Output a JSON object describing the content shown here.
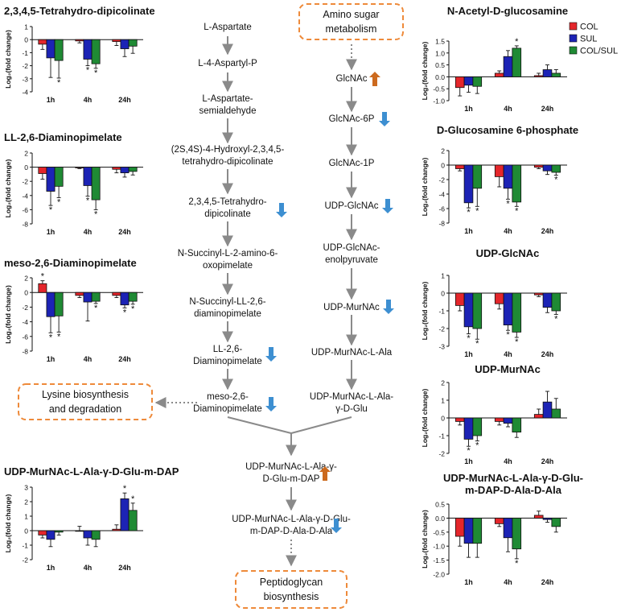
{
  "colors": {
    "col": "#e4262b",
    "sul": "#1c23b5",
    "colsul": "#1f8a34",
    "arrow": "#8a8a8a",
    "up": "#cc6a1e",
    "down": "#3d8fd1",
    "box": "#ee8a3a"
  },
  "legend": [
    "COL",
    "SUL",
    "COL/SUL"
  ],
  "ylabel": "Log₂(fold change)",
  "pathway_left": [
    {
      "lines": [
        "L-Aspartate"
      ],
      "change": "none"
    },
    {
      "lines": [
        "L-4-Aspartyl-P"
      ],
      "change": "none"
    },
    {
      "lines": [
        "L-Aspartate-",
        "semialdehyde"
      ],
      "change": "none"
    },
    {
      "lines": [
        "(2S,4S)-4-Hydroxyl-2,3,4,5-",
        "tetrahydro-dipicolinate"
      ],
      "change": "none"
    },
    {
      "lines": [
        "2,3,4,5-Tetrahydro-",
        "dipicolinate"
      ],
      "change": "down"
    },
    {
      "lines": [
        "N-Succinyl-L-2-amino-6-",
        "oxopimelate"
      ],
      "change": "none"
    },
    {
      "lines": [
        "N-Succinyl-LL-2,6-",
        "diaminopimelate"
      ],
      "change": "none"
    },
    {
      "lines": [
        "LL-2,6-",
        "Diaminopimelate"
      ],
      "change": "down"
    },
    {
      "lines": [
        "meso-2,6-",
        "Diaminopimelate"
      ],
      "change": "down"
    }
  ],
  "pathway_right": [
    {
      "lines": [
        "GlcNAc"
      ],
      "change": "up"
    },
    {
      "lines": [
        "GlcNAc-6P"
      ],
      "change": "down"
    },
    {
      "lines": [
        "GlcNAc-1P"
      ],
      "change": "none"
    },
    {
      "lines": [
        "UDP-GlcNAc"
      ],
      "change": "down"
    },
    {
      "lines": [
        "UDP-GlcNAc-",
        "enolpyruvate"
      ],
      "change": "none"
    },
    {
      "lines": [
        "UDP-MurNAc"
      ],
      "change": "down"
    },
    {
      "lines": [
        "UDP-MurNAc-L-Ala"
      ],
      "change": "none"
    },
    {
      "lines": [
        "UDP-MurNAc-L-Ala-",
        "γ-D-Glu"
      ],
      "change": "none"
    }
  ],
  "pathway_bottom": [
    {
      "lines": [
        "UDP-MurNAc-L-Ala-γ-",
        "D-Glu-m-DAP"
      ],
      "change": "up"
    },
    {
      "lines": [
        "UDP-MurNAc-L-Ala-γ-D-Glu-",
        "m-DAP-D-Ala-D-Ala"
      ],
      "change": "down"
    }
  ],
  "boxes": {
    "amino_sugar": [
      "Amino sugar",
      "metabolism"
    ],
    "lysine": [
      "Lysine biosynthesis",
      "and degradation"
    ],
    "peptidoglycan": [
      "Peptidoglycan",
      "biosynthesis"
    ]
  },
  "chart_data": [
    {
      "type": "bar",
      "title": "2,3,4,5-Tetrahydro-dipicolinate",
      "categories": [
        "1h",
        "4h",
        "24h"
      ],
      "ylim": [
        -4,
        1
      ],
      "yticks": [
        1,
        0,
        -1,
        -2,
        -3,
        -4
      ],
      "ylabel": "Log₂(fold change)",
      "series": [
        {
          "name": "COL",
          "values": [
            -0.35,
            -0.1,
            -0.15
          ],
          "err": [
            0.4,
            0.15,
            0.3
          ]
        },
        {
          "name": "SUL",
          "values": [
            -1.4,
            -1.5,
            -0.7
          ],
          "err": [
            1.5,
            0.5,
            0.6
          ]
        },
        {
          "name": "COL/SUL",
          "values": [
            -1.6,
            -1.85,
            -0.5
          ],
          "err": [
            1.35,
            0.35,
            0.55
          ]
        }
      ],
      "sig": [
        [
          false,
          false,
          false
        ],
        [
          false,
          true,
          false
        ],
        [
          true,
          true,
          false
        ]
      ]
    },
    {
      "type": "bar",
      "title": "LL-2,6-Diaminopimelate",
      "categories": [
        "1h",
        "4h",
        "24h"
      ],
      "ylim": [
        -8,
        2
      ],
      "yticks": [
        2,
        0,
        -2,
        -4,
        -6,
        -8
      ],
      "ylabel": "Log₂(fold change)",
      "series": [
        {
          "name": "COL",
          "values": [
            -0.9,
            -0.1,
            -0.3
          ],
          "err": [
            0.8,
            0.1,
            0.5
          ]
        },
        {
          "name": "SUL",
          "values": [
            -3.4,
            -2.6,
            -0.8
          ],
          "err": [
            2.0,
            1.5,
            0.6
          ]
        },
        {
          "name": "COL/SUL",
          "values": [
            -2.7,
            -4.6,
            -0.6
          ],
          "err": [
            1.6,
            1.4,
            0.5
          ]
        }
      ],
      "sig": [
        [
          false,
          false,
          false
        ],
        [
          true,
          true,
          false
        ],
        [
          true,
          true,
          false
        ]
      ]
    },
    {
      "type": "bar",
      "title": "meso-2,6-Diaminopimelate",
      "categories": [
        "1h",
        "4h",
        "24h"
      ],
      "ylim": [
        -8,
        2
      ],
      "yticks": [
        2,
        0,
        -2,
        -4,
        -6,
        -8
      ],
      "ylabel": "Log₂(fold change)",
      "series": [
        {
          "name": "COL",
          "values": [
            1.2,
            -0.4,
            -0.4
          ],
          "err": [
            0.4,
            0.3,
            0.3
          ]
        },
        {
          "name": "SUL",
          "values": [
            -3.3,
            -1.3,
            -1.7
          ],
          "err": [
            2.2,
            2.6,
            0.4
          ]
        },
        {
          "name": "COL/SUL",
          "values": [
            -3.2,
            -1.2,
            -1.2
          ],
          "err": [
            2.2,
            0.3,
            0.4
          ]
        }
      ],
      "sig": [
        [
          true,
          false,
          false
        ],
        [
          true,
          false,
          true
        ],
        [
          true,
          true,
          true
        ]
      ]
    },
    {
      "type": "bar",
      "title": "UDP-MurNAc-L-Ala-γ-D-Glu-m-DAP",
      "categories": [
        "1h",
        "4h",
        "24h"
      ],
      "ylim": [
        -2,
        3
      ],
      "yticks": [
        3,
        2,
        1,
        0,
        -1,
        -2
      ],
      "ylabel": "Log₂(fold change)",
      "series": [
        {
          "name": "COL",
          "values": [
            -0.3,
            0.0,
            0.1
          ],
          "err": [
            0.2,
            0.3,
            0.3
          ]
        },
        {
          "name": "SUL",
          "values": [
            -0.6,
            -0.5,
            2.2
          ],
          "err": [
            0.5,
            0.5,
            0.4
          ]
        },
        {
          "name": "COL/SUL",
          "values": [
            -0.1,
            -0.6,
            1.4
          ],
          "err": [
            0.2,
            0.5,
            0.5
          ]
        }
      ],
      "sig": [
        [
          false,
          false,
          false
        ],
        [
          false,
          false,
          true
        ],
        [
          false,
          false,
          true
        ]
      ]
    },
    {
      "type": "bar",
      "title": "N-Acetyl-D-glucosamine",
      "categories": [
        "1h",
        "4h",
        "24h"
      ],
      "ylim": [
        -1.0,
        1.5
      ],
      "yticks": [
        1.5,
        1.0,
        0.5,
        0.0,
        -0.5,
        -1.0
      ],
      "ylabel": "Log₂(fold change)",
      "series": [
        {
          "name": "COL",
          "values": [
            -0.45,
            0.15,
            0.05
          ],
          "err": [
            0.35,
            0.1,
            0.1
          ]
        },
        {
          "name": "SUL",
          "values": [
            -0.35,
            0.85,
            0.3
          ],
          "err": [
            0.3,
            0.25,
            0.2
          ]
        },
        {
          "name": "COL/SUL",
          "values": [
            -0.4,
            1.2,
            0.15
          ],
          "err": [
            0.3,
            0.1,
            0.15
          ]
        }
      ],
      "sig": [
        [
          false,
          false,
          false
        ],
        [
          false,
          false,
          false
        ],
        [
          false,
          true,
          false
        ]
      ]
    },
    {
      "type": "bar",
      "title": "D-Glucosamine 6-phosphate",
      "categories": [
        "1h",
        "4h",
        "24h"
      ],
      "ylim": [
        -8,
        2
      ],
      "yticks": [
        2,
        0,
        -2,
        -4,
        -6,
        -8
      ],
      "ylabel": "Log₂(fold change)",
      "series": [
        {
          "name": "COL",
          "values": [
            -0.5,
            -1.6,
            -0.3
          ],
          "err": [
            0.3,
            1.4,
            0.2
          ]
        },
        {
          "name": "SUL",
          "values": [
            -5.2,
            -3.2,
            -0.8
          ],
          "err": [
            0.7,
            1.5,
            0.5
          ]
        },
        {
          "name": "COL/SUL",
          "values": [
            -3.2,
            -5.1,
            -1.0
          ],
          "err": [
            2.5,
            0.6,
            0.4
          ]
        }
      ],
      "sig": [
        [
          false,
          false,
          false
        ],
        [
          true,
          true,
          false
        ],
        [
          true,
          true,
          true
        ]
      ]
    },
    {
      "type": "bar",
      "title": "UDP-GlcNAc",
      "categories": [
        "1h",
        "4h",
        "24h"
      ],
      "ylim": [
        -3,
        1
      ],
      "yticks": [
        1,
        0,
        -1,
        -2,
        -3
      ],
      "ylabel": "Log₂(fold change)",
      "series": [
        {
          "name": "COL",
          "values": [
            -0.7,
            -0.6,
            -0.1
          ],
          "err": [
            0.3,
            0.3,
            0.1
          ]
        },
        {
          "name": "SUL",
          "values": [
            -1.9,
            -1.8,
            -0.8
          ],
          "err": [
            0.4,
            0.3,
            0.3
          ]
        },
        {
          "name": "COL/SUL",
          "values": [
            -2.0,
            -2.2,
            -1.0
          ],
          "err": [
            0.6,
            0.3,
            0.2
          ]
        }
      ],
      "sig": [
        [
          false,
          false,
          false
        ],
        [
          true,
          true,
          false
        ],
        [
          true,
          true,
          true
        ]
      ]
    },
    {
      "type": "bar",
      "title": "UDP-MurNAc",
      "categories": [
        "1h",
        "4h",
        "24h"
      ],
      "ylim": [
        -2,
        2
      ],
      "yticks": [
        2,
        1,
        0,
        -1,
        -2
      ],
      "ylabel": "Log₂(fold change)",
      "series": [
        {
          "name": "COL",
          "values": [
            -0.2,
            -0.2,
            0.2
          ],
          "err": [
            0.2,
            0.2,
            0.3
          ]
        },
        {
          "name": "SUL",
          "values": [
            -1.2,
            -0.3,
            0.9
          ],
          "err": [
            0.4,
            0.2,
            0.6
          ]
        },
        {
          "name": "COL/SUL",
          "values": [
            -1.0,
            -0.8,
            0.5
          ],
          "err": [
            0.3,
            0.3,
            0.6
          ]
        }
      ],
      "sig": [
        [
          false,
          false,
          false
        ],
        [
          true,
          false,
          false
        ],
        [
          true,
          false,
          false
        ]
      ]
    },
    {
      "type": "bar",
      "title": "UDP-MurNAc-L-Ala-γ-D-Glu-m-DAP-D-Ala-D-Ala",
      "categories": [
        "1h",
        "4h",
        "24h"
      ],
      "ylim": [
        -2.0,
        0.5
      ],
      "yticks": [
        0.5,
        0.0,
        -0.5,
        -1.0,
        -1.5,
        -2.0
      ],
      "ylabel": "Log₂(fold change)",
      "series": [
        {
          "name": "COL",
          "values": [
            -0.65,
            -0.2,
            0.1
          ],
          "err": [
            0.35,
            0.1,
            0.15
          ]
        },
        {
          "name": "SUL",
          "values": [
            -0.9,
            -0.7,
            -0.05
          ],
          "err": [
            0.5,
            0.5,
            0.1
          ]
        },
        {
          "name": "COL/SUL",
          "values": [
            -0.9,
            -1.1,
            -0.3
          ],
          "err": [
            0.5,
            0.35,
            0.2
          ]
        }
      ],
      "sig": [
        [
          false,
          false,
          false
        ],
        [
          false,
          false,
          false
        ],
        [
          false,
          true,
          false
        ]
      ]
    }
  ]
}
